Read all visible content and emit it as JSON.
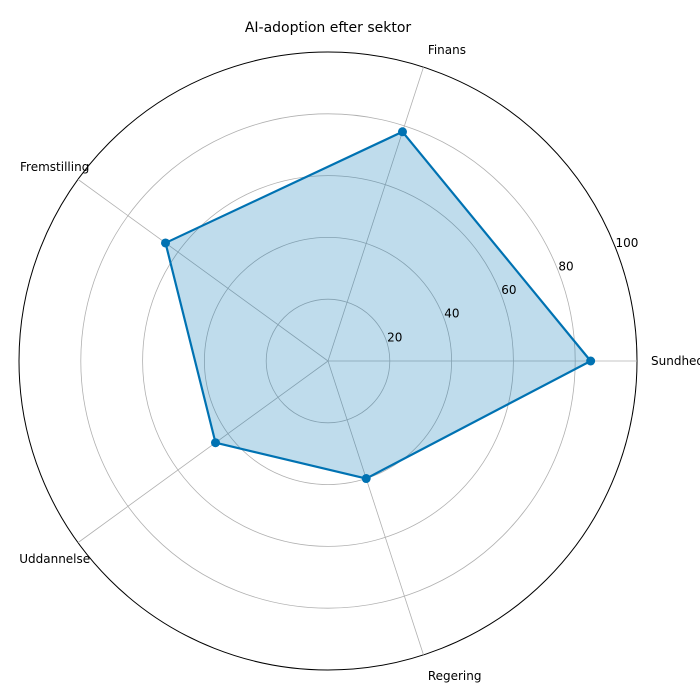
{
  "chart_data": {
    "type": "radar",
    "title": "AI-adoption efter sektor",
    "categories": [
      "Sundhed",
      "Finans",
      "Fremstilling",
      "Uddannelse",
      "Regering"
    ],
    "series": [
      {
        "values": [
          85,
          78,
          65,
          45,
          40
        ]
      }
    ],
    "rlim": [
      0,
      100
    ],
    "r_ticks": [
      20,
      40,
      60,
      80,
      100
    ],
    "grid": true,
    "colors": {
      "line": "#0072b2",
      "fill": "#0072b2",
      "grid": "#b0b0b0",
      "frame": "#000000"
    }
  }
}
